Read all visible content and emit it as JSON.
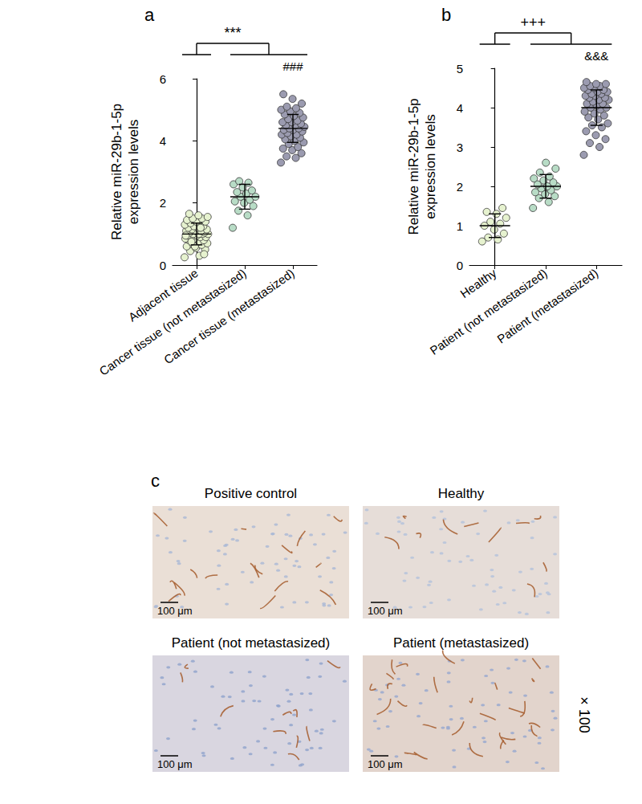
{
  "chart_data": [
    {
      "type": "scatter",
      "title": "a",
      "y_label": "Relative miR-29b-1-5p\nexpression levels",
      "categories": [
        "Adjacent tissue",
        "Cancer tissue (not metastasized)",
        "Cancer tissue (metastasized)"
      ],
      "values": [
        [
          0.25,
          0.3,
          0.45,
          0.5,
          0.55,
          0.6,
          0.65,
          0.7,
          0.7,
          0.75,
          0.8,
          0.8,
          0.85,
          0.85,
          0.9,
          0.9,
          0.9,
          0.95,
          0.95,
          1.0,
          1.0,
          1.0,
          1.0,
          1.05,
          1.05,
          1.1,
          1.1,
          1.1,
          1.15,
          1.15,
          1.2,
          1.2,
          1.25,
          1.25,
          1.3,
          1.3,
          1.35,
          1.4,
          1.4,
          1.45,
          1.5,
          1.5,
          1.55,
          1.6,
          1.65,
          0.35,
          0.6,
          0.95,
          1.2,
          0.75
        ],
        [
          1.2,
          1.6,
          1.75,
          1.9,
          2.0,
          2.05,
          2.1,
          2.2,
          2.2,
          2.3,
          2.35,
          2.4,
          2.5,
          2.6,
          2.65,
          2.7
        ],
        [
          3.3,
          3.45,
          3.5,
          3.6,
          3.7,
          3.75,
          3.8,
          3.9,
          3.95,
          4.0,
          4.05,
          4.1,
          4.15,
          4.2,
          4.2,
          4.25,
          4.3,
          4.35,
          4.35,
          4.4,
          4.4,
          4.45,
          4.5,
          4.5,
          4.55,
          4.6,
          4.6,
          4.65,
          4.7,
          4.75,
          4.8,
          4.85,
          4.9,
          4.95,
          5.0,
          5.05,
          5.1,
          5.2,
          5.35,
          5.5
        ]
      ],
      "means": [
        1.0,
        2.2,
        4.4
      ],
      "sds": [
        0.35,
        0.4,
        0.45
      ],
      "colors": [
        "#e6f2cf",
        "#b8dcc6",
        "#9b9bb0"
      ],
      "marker": "circle",
      "ylim": [
        0,
        6
      ],
      "yticks": [
        0,
        2,
        4,
        6
      ],
      "grid": false,
      "annotations": [
        {
          "text": "***",
          "left": [
            "Adjacent tissue"
          ],
          "right": [
            "Cancer tissue (not metastasized)",
            "Cancer tissue (metastasized)"
          ]
        },
        {
          "text": "###",
          "category": "Cancer tissue (metastasized)"
        }
      ]
    },
    {
      "type": "scatter",
      "title": "b",
      "y_label": "Relative miR-29b-1-5p\nexpression levels",
      "categories": [
        "Healthy",
        "Patient (not metastasized)",
        "Patient (metastasized)"
      ],
      "values": [
        [
          0.6,
          0.65,
          0.7,
          0.8,
          0.9,
          1.0,
          1.05,
          1.1,
          1.2,
          1.3,
          1.35,
          1.45
        ],
        [
          1.45,
          1.6,
          1.7,
          1.75,
          1.8,
          1.85,
          1.9,
          1.95,
          2.0,
          2.0,
          2.05,
          2.1,
          2.15,
          2.2,
          2.25,
          2.35,
          2.45,
          2.6
        ],
        [
          2.8,
          3.0,
          3.1,
          3.2,
          3.3,
          3.4,
          3.5,
          3.55,
          3.6,
          3.7,
          3.75,
          3.8,
          3.85,
          3.9,
          3.95,
          4.0,
          4.0,
          4.05,
          4.1,
          4.1,
          4.15,
          4.2,
          4.2,
          4.25,
          4.25,
          4.3,
          4.3,
          4.35,
          4.35,
          4.4,
          4.4,
          4.45,
          4.45,
          4.5,
          4.5,
          4.55,
          4.55,
          4.6,
          4.6,
          4.65
        ]
      ],
      "means": [
        1.0,
        2.0,
        4.0
      ],
      "sds": [
        0.3,
        0.3,
        0.45
      ],
      "colors": [
        "#e6f2cf",
        "#b8dcc6",
        "#9b9bb0"
      ],
      "marker": "circle",
      "ylim": [
        0,
        5
      ],
      "yticks": [
        0,
        1,
        2,
        3,
        4,
        5
      ],
      "grid": false,
      "annotations": [
        {
          "text": "+++",
          "left": [
            "Healthy"
          ],
          "right": [
            "Patient (not metastasized)",
            "Patient (metastasized)"
          ]
        },
        {
          "text": "&&&",
          "category": "Patient (metastasized)"
        }
      ]
    }
  ],
  "panel_c": {
    "label": "c",
    "magnification": "× 100",
    "images": [
      {
        "title": "Positive control",
        "scale_bar": "100 μm"
      },
      {
        "title": "Healthy",
        "scale_bar": "100 μm"
      },
      {
        "title": "Patient (not metastasized)",
        "scale_bar": "100 μm"
      },
      {
        "title": "Patient (metastasized)",
        "scale_bar": "100 μm"
      }
    ]
  }
}
